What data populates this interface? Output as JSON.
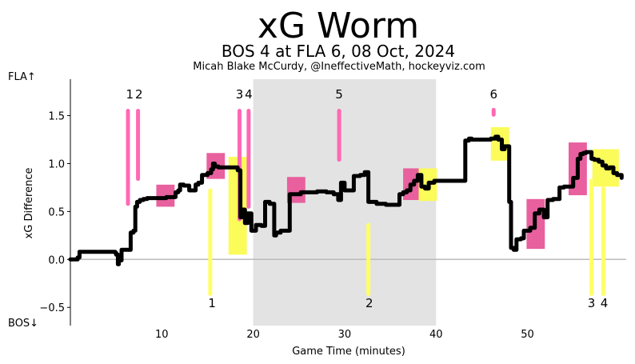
{
  "chart_data": {
    "type": "line",
    "title": "xG Worm",
    "subtitle": "BOS 4 at FLA 6, 08 Oct, 2024",
    "credit": "Micah Blake McCurdy, @IneffectiveMath, hockeyviz.com",
    "xlabel": "Game Time (minutes)",
    "ylabel": "xG Difference",
    "top_label": "FLA↑",
    "bottom_label": "BOS↓",
    "xlim": [
      0,
      60.8
    ],
    "ylim": [
      -0.69,
      1.88
    ],
    "xticks": [
      10,
      20,
      30,
      40,
      50
    ],
    "xtick_labels": [
      "10",
      "20",
      "30",
      "40",
      "50"
    ],
    "yticks": [
      -0.5,
      0.0,
      0.5,
      1.0,
      1.5
    ],
    "ytick_labels": [
      "−0.5",
      "0.0",
      "0.5",
      "1.0",
      "1.5"
    ],
    "shaded_period": [
      20,
      40
    ],
    "colors": {
      "fla_goal": "#ff69b4",
      "bos_goal": "#ffff66",
      "fla_box": "#e8609e",
      "bos_box": "#fbfb5a",
      "worm": "#000000",
      "shade": "#e3e3e3",
      "zero_line": "#bbbbbb"
    },
    "worm": {
      "x": [
        0,
        0.8,
        1.0,
        4.8,
        4.9,
        5.0,
        5.2,
        5.3,
        5.6,
        6.0,
        6.4,
        6.6,
        6.9,
        7.1,
        7.3,
        7.6,
        8.0,
        8.4,
        10.5,
        11.5,
        11.8,
        12.0,
        12.4,
        13.0,
        13.4,
        13.7,
        14.0,
        14.4,
        15.0,
        15.4,
        15.6,
        15.8,
        16.2,
        16.8,
        17.8,
        18.3,
        18.6,
        18.8,
        19.1,
        19.4,
        19.8,
        20.3,
        20.9,
        21.3,
        21.8,
        22.3,
        22.5,
        23.0,
        24.0,
        25.2,
        26.2,
        27.0,
        28.0,
        28.8,
        29.3,
        29.6,
        30.0,
        30.5,
        31.0,
        31.7,
        32.2,
        32.6,
        33.5,
        34.5,
        35.5,
        36.0,
        36.4,
        36.8,
        37.2,
        37.6,
        38.0,
        38.4,
        38.8,
        39.2,
        39.8,
        40.2,
        42.0,
        43.2,
        43.6,
        43.9,
        44.0,
        46.0,
        46.5,
        46.8,
        47.2,
        47.5,
        48.0,
        48.2,
        48.5,
        48.8,
        49.3,
        49.6,
        50.3,
        50.8,
        51.3,
        51.8,
        52.2,
        52.8,
        53.5,
        54.0,
        55.0,
        55.5,
        55.8,
        56.1,
        56.4,
        57.0,
        57.3,
        57.8,
        58.2,
        58.6,
        59.0,
        59.4,
        59.8,
        60.3
      ],
      "y": [
        0.0,
        0.02,
        0.08,
        0.08,
        0.07,
        0.05,
        -0.05,
        -0.01,
        0.1,
        0.1,
        0.1,
        0.28,
        0.3,
        0.55,
        0.6,
        0.62,
        0.63,
        0.64,
        0.65,
        0.7,
        0.72,
        0.78,
        0.77,
        0.72,
        0.72,
        0.78,
        0.8,
        0.88,
        0.9,
        0.94,
        1.0,
        0.97,
        0.96,
        0.96,
        0.96,
        0.93,
        0.44,
        0.52,
        0.38,
        0.48,
        0.3,
        0.36,
        0.35,
        0.6,
        0.58,
        0.25,
        0.28,
        0.3,
        0.68,
        0.7,
        0.7,
        0.71,
        0.7,
        0.68,
        0.62,
        0.8,
        0.72,
        0.72,
        0.87,
        0.88,
        0.91,
        0.6,
        0.58,
        0.57,
        0.57,
        0.68,
        0.7,
        0.72,
        0.78,
        0.82,
        0.88,
        0.76,
        0.74,
        0.8,
        0.82,
        0.82,
        0.82,
        1.24,
        1.26,
        1.25,
        1.25,
        1.26,
        1.28,
        1.25,
        1.15,
        1.18,
        0.6,
        0.12,
        0.1,
        0.21,
        0.22,
        0.3,
        0.33,
        0.48,
        0.52,
        0.44,
        0.62,
        0.63,
        0.75,
        0.76,
        0.85,
        1.05,
        1.1,
        1.11,
        1.12,
        1.05,
        1.04,
        1.02,
        0.98,
        0.95,
        0.96,
        0.9,
        0.88,
        0.85
      ]
    },
    "goals": [
      {
        "team": "FLA",
        "x": 6.3,
        "y_from": 0.58,
        "y_to": 1.55,
        "label": "1",
        "label_x": 6.5
      },
      {
        "team": "FLA",
        "x": 7.4,
        "y_from": 0.84,
        "y_to": 1.55,
        "label": "2",
        "label_x": 7.5
      },
      {
        "team": "FLA",
        "x": 18.5,
        "y_from": 0.42,
        "y_to": 1.55,
        "label": "3",
        "label_x": 18.5
      },
      {
        "team": "FLA",
        "x": 19.5,
        "y_from": 0.55,
        "y_to": 1.55,
        "label": "4",
        "label_x": 19.5
      },
      {
        "team": "FLA",
        "x": 29.4,
        "y_from": 1.04,
        "y_to": 1.55,
        "label": "5",
        "label_x": 29.4
      },
      {
        "team": "FLA",
        "x": 46.3,
        "y_from": 1.51,
        "y_to": 1.56,
        "label": "6",
        "label_x": 46.3
      },
      {
        "team": "BOS",
        "x": 15.3,
        "y_from": -0.36,
        "y_to": 0.72,
        "label": "1",
        "label_x": 15.5
      },
      {
        "team": "BOS",
        "x": 32.6,
        "y_from": -0.36,
        "y_to": 0.36,
        "label": "2",
        "label_x": 32.7
      },
      {
        "team": "BOS",
        "x": 57.0,
        "y_from": -0.36,
        "y_to": 0.82,
        "label": "3",
        "label_x": 57.0
      },
      {
        "team": "BOS",
        "x": 58.3,
        "y_from": -0.36,
        "y_to": 0.74,
        "label": "4",
        "label_x": 58.4
      }
    ],
    "boxes": [
      {
        "team": "FLA",
        "x0": 9.4,
        "x1": 11.4,
        "y0": 0.55,
        "y1": 0.78
      },
      {
        "team": "FLA",
        "x0": 14.9,
        "x1": 16.9,
        "y0": 0.84,
        "y1": 1.11
      },
      {
        "team": "FLA",
        "x0": 23.7,
        "x1": 25.7,
        "y0": 0.59,
        "y1": 0.86
      },
      {
        "team": "FLA",
        "x0": 36.4,
        "x1": 38.4,
        "y0": 0.62,
        "y1": 0.95
      },
      {
        "team": "FLA",
        "x0": 49.9,
        "x1": 51.9,
        "y0": 0.11,
        "y1": 0.63
      },
      {
        "team": "FLA",
        "x0": 54.5,
        "x1": 56.5,
        "y0": 0.67,
        "y1": 1.22
      },
      {
        "team": "BOS",
        "x0": 17.3,
        "x1": 19.3,
        "y0": 0.05,
        "y1": 1.07
      },
      {
        "team": "BOS",
        "x0": 38.1,
        "x1": 40.1,
        "y0": 0.61,
        "y1": 0.95
      },
      {
        "team": "BOS",
        "x0": 46.0,
        "x1": 48.0,
        "y0": 1.03,
        "y1": 1.38
      },
      {
        "team": "BOS",
        "x0": 57.1,
        "x1": 60.0,
        "y0": 0.76,
        "y1": 1.15
      }
    ]
  }
}
